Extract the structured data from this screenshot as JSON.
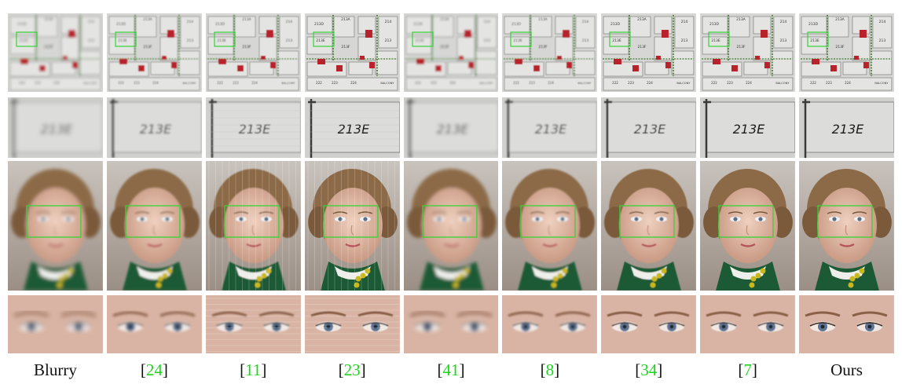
{
  "columns": [
    {
      "key": "blurry",
      "label": "Blurry",
      "is_citation": false
    },
    {
      "key": "m24",
      "label": "24",
      "is_citation": true
    },
    {
      "key": "m11",
      "label": "11",
      "is_citation": true
    },
    {
      "key": "m23",
      "label": "23",
      "is_citation": true
    },
    {
      "key": "m41",
      "label": "41",
      "is_citation": true
    },
    {
      "key": "m8",
      "label": "8",
      "is_citation": true
    },
    {
      "key": "m34",
      "label": "34",
      "is_citation": true
    },
    {
      "key": "m7",
      "label": "7",
      "is_citation": true
    },
    {
      "key": "ours",
      "label": "Ours",
      "is_citation": false
    }
  ],
  "floorplan_text": {
    "room_main": "213E",
    "rooms_top": [
      "213D",
      "213A",
      "214"
    ],
    "rooms_mid": [
      "213E",
      "213F",
      "213"
    ],
    "rooms_bottom": [
      "222",
      "223",
      "224",
      "BALCONY"
    ]
  },
  "colors": {
    "citation": "#1ed31e",
    "highlight_box": "#35d435",
    "floorplan_red": "#b8222a",
    "floorplan_green": "#5a8a4a"
  }
}
